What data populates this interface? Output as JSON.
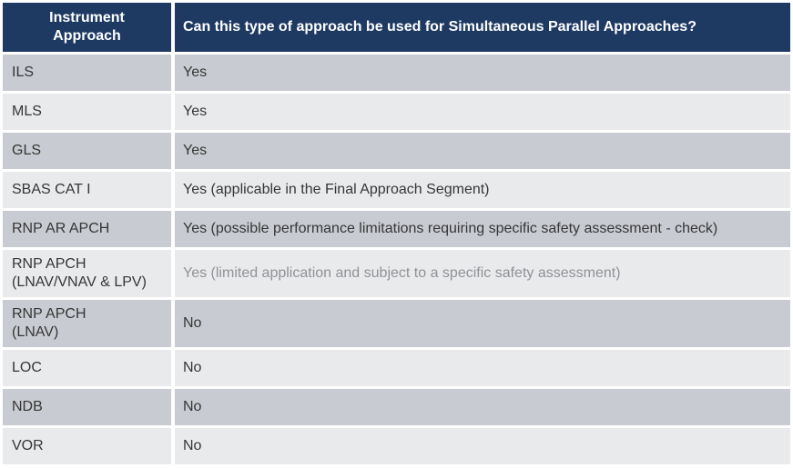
{
  "colors": {
    "header_bg": "#1E3A63",
    "header_text": "#FFFFFF",
    "row_dark": "#C8CBD1",
    "row_light": "#E9EAEC",
    "text": "#363636",
    "muted_text": "#909296"
  },
  "table": {
    "headers": {
      "approach": "Instrument\nApproach",
      "question": "Can this type of approach be used for Simultaneous Parallel Approaches?"
    },
    "rows": [
      {
        "approach": "ILS",
        "answer": "Yes",
        "muted": false
      },
      {
        "approach": "MLS",
        "answer": "Yes",
        "muted": false
      },
      {
        "approach": "GLS",
        "answer": "Yes",
        "muted": false
      },
      {
        "approach": "SBAS CAT I",
        "answer": "Yes (applicable in the Final Approach Segment)",
        "muted": false
      },
      {
        "approach": "RNP AR APCH",
        "answer": "Yes (possible performance limitations requiring specific safety assessment - check)",
        "muted": false
      },
      {
        "approach": "RNP APCH\n(LNAV/VNAV & LPV)",
        "answer": "Yes (limited application and subject to a specific safety assessment)",
        "muted": true
      },
      {
        "approach": "RNP APCH\n(LNAV)",
        "answer": "No",
        "muted": false
      },
      {
        "approach": "LOC",
        "answer": "No",
        "muted": false
      },
      {
        "approach": "NDB",
        "answer": "No",
        "muted": false
      },
      {
        "approach": "VOR",
        "answer": "No",
        "muted": false
      }
    ]
  }
}
